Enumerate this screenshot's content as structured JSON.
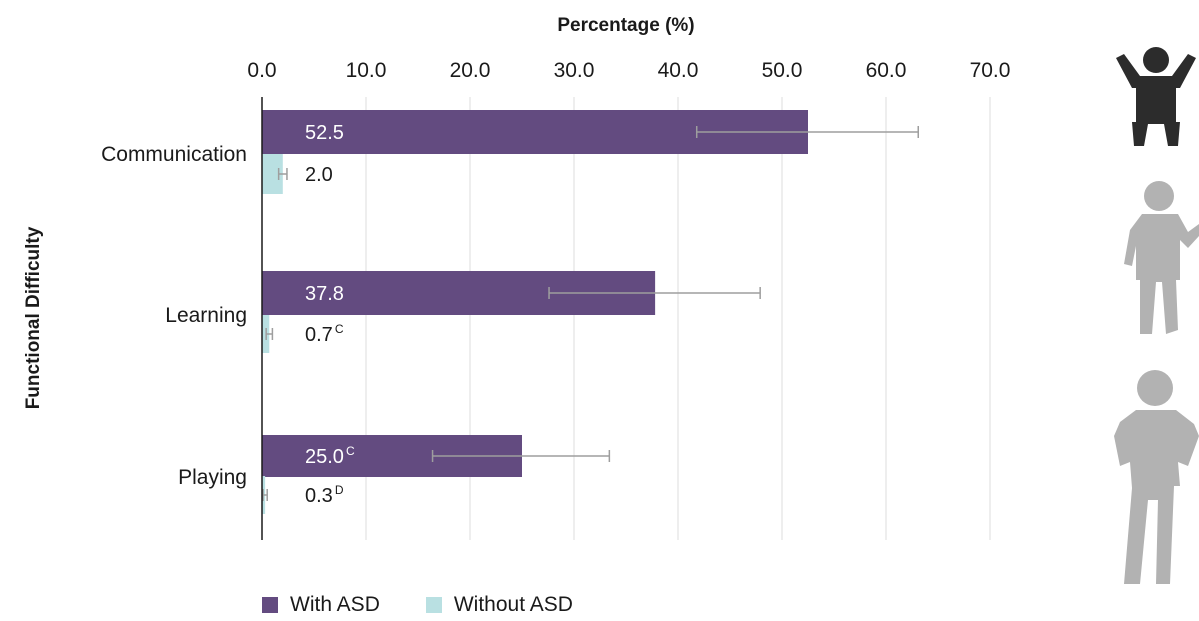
{
  "chart_data": {
    "type": "bar",
    "orientation": "horizontal",
    "xlabel": "Percentage (%)",
    "ylabel": "Functional Difficulty",
    "xlim": [
      0,
      70
    ],
    "xticks": [
      "0.0",
      "10.0",
      "20.0",
      "30.0",
      "40.0",
      "50.0",
      "60.0",
      "70.0"
    ],
    "grid": "vertical",
    "legend_position": "bottom",
    "categories": [
      "Communication",
      "Learning",
      "Playing"
    ],
    "series": [
      {
        "name": "With ASD",
        "color": "#634b80",
        "values": [
          52.5,
          37.8,
          25.0
        ],
        "labels": [
          "52.5",
          "37.8",
          "25.0"
        ],
        "superscripts": [
          "",
          "",
          "C"
        ],
        "error_low": [
          41.8,
          27.6,
          16.4
        ],
        "error_high": [
          63.1,
          47.9,
          33.4
        ]
      },
      {
        "name": "Without ASD",
        "color": "#b9e0e2",
        "values": [
          2.0,
          0.7,
          0.3
        ],
        "labels": [
          "2.0",
          "0.7",
          "0.3"
        ],
        "superscripts": [
          "",
          "C",
          "D"
        ],
        "error_low": [
          1.6,
          0.4,
          0.1
        ],
        "error_high": [
          2.4,
          1.0,
          0.5
        ]
      }
    ]
  },
  "decoration": {
    "icons": [
      "child-arms-raised-icon",
      "child-waving-icon",
      "child-hands-on-hips-icon"
    ],
    "icon_colors": [
      "#2c2c2c",
      "#b2b2b2",
      "#b2b2b2"
    ]
  }
}
